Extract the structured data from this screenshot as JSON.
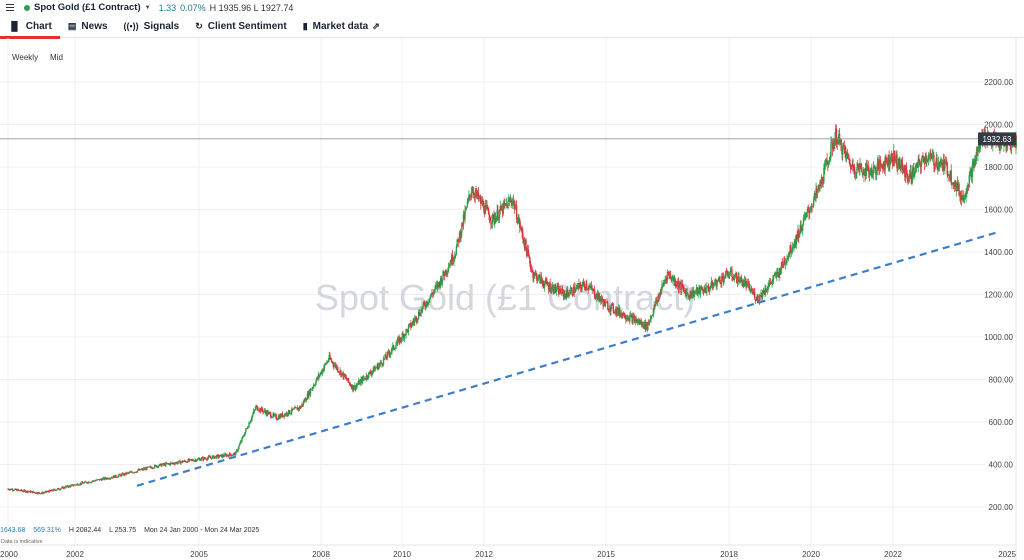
{
  "header": {
    "instrument": "Spot Gold (£1 Contract)",
    "change": "1.33",
    "change_pct": "0.07%",
    "high_low": "H 1935.96  L 1927.74",
    "status_color": "#2e9e4a",
    "icons": [
      "menu-icon",
      "status-dot",
      "caret-down-icon"
    ]
  },
  "tabs": [
    {
      "label": "Chart",
      "icon": "bar-chart-icon",
      "active": true
    },
    {
      "label": "News",
      "icon": "newspaper-icon"
    },
    {
      "label": "Signals",
      "icon": "signal-icon"
    },
    {
      "label": "Client Sentiment",
      "icon": "sentiment-icon"
    },
    {
      "label": "Market data",
      "icon": "market-data-icon",
      "external": true
    }
  ],
  "chart_options": {
    "interval": "Weekly",
    "price_type": "Mid"
  },
  "stats": {
    "change_value": "1643.68",
    "change_pct": "569.31%",
    "high": "H 2082.44",
    "low": "L 253.75",
    "range": "Mon 24 Jan 2000 - Mon 24 Mar 2025",
    "note": "Data is indicative"
  },
  "chart_data": {
    "type": "candlestick",
    "watermark": "Spot Gold (£1 Contract)",
    "current_price": "1932.63",
    "colors": {
      "up": "#2e9e4a",
      "down": "#d9363e",
      "trendline": "#3d7ec9",
      "price_label_bg": "#333a44"
    },
    "x_ticks": [
      "2000",
      "2002",
      "2005",
      "2008",
      "2010",
      "2012",
      "2015",
      "2018",
      "2020",
      "2022",
      "2025"
    ],
    "y_ticks": [
      "200.00",
      "400.00",
      "600.00",
      "800.00",
      "1000.00",
      "1200.00",
      "1400.00",
      "1600.00",
      "1800.00",
      "2000.00",
      "2200.00"
    ],
    "ylim": [
      100,
      2300
    ],
    "series": {
      "name": "Spot Gold",
      "x": [
        2000.0,
        2001.0,
        2002.0,
        2003.0,
        2004.0,
        2005.0,
        2005.9,
        2006.4,
        2006.9,
        2007.5,
        2008.2,
        2008.8,
        2009.5,
        2010.2,
        2010.9,
        2011.3,
        2011.7,
        2012.2,
        2012.7,
        2013.2,
        2013.5,
        2014.0,
        2014.5,
        2015.0,
        2015.5,
        2016.0,
        2016.5,
        2017.0,
        2017.5,
        2018.0,
        2018.4,
        2018.7,
        2019.2,
        2019.6,
        2020.2,
        2020.6,
        2021.0,
        2021.5,
        2022.0,
        2022.4,
        2022.8,
        2023.3,
        2023.7,
        2024.2,
        2024.7,
        2025.2
      ],
      "y": [
        285,
        265,
        305,
        345,
        395,
        425,
        450,
        670,
        620,
        670,
        900,
        760,
        880,
        1050,
        1250,
        1400,
        1700,
        1550,
        1650,
        1300,
        1250,
        1200,
        1250,
        1150,
        1100,
        1050,
        1300,
        1200,
        1230,
        1300,
        1250,
        1180,
        1300,
        1450,
        1700,
        1950,
        1800,
        1780,
        1850,
        1750,
        1850,
        1800,
        1650,
        1950,
        1900,
        1930
      ]
    },
    "trendline": {
      "x": [
        2003.5,
        2024.5
      ],
      "y": [
        300,
        1490
      ]
    }
  }
}
